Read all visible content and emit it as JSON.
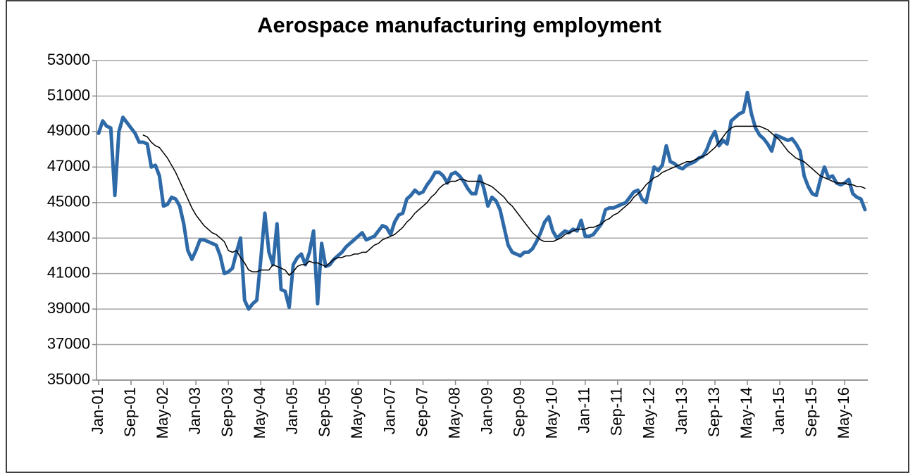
{
  "chart_data": {
    "type": "line",
    "title": "Aerospace manufacturing employment",
    "categories": [
      "Jan-01",
      null,
      null,
      null,
      null,
      null,
      null,
      null,
      "Sep-01",
      null,
      null,
      null,
      null,
      null,
      null,
      null,
      "May-02",
      null,
      null,
      null,
      null,
      null,
      null,
      null,
      "Jan-03",
      null,
      null,
      null,
      null,
      null,
      null,
      null,
      "Sep-03",
      null,
      null,
      null,
      null,
      null,
      null,
      null,
      "May-04",
      null,
      null,
      null,
      null,
      null,
      null,
      null,
      "Jan-05",
      null,
      null,
      null,
      null,
      null,
      null,
      null,
      "Sep-05",
      null,
      null,
      null,
      null,
      null,
      null,
      null,
      "May-06",
      null,
      null,
      null,
      null,
      null,
      null,
      null,
      "Jan-07",
      null,
      null,
      null,
      null,
      null,
      null,
      null,
      "Sep-07",
      null,
      null,
      null,
      null,
      null,
      null,
      null,
      "May-08",
      null,
      null,
      null,
      null,
      null,
      null,
      null,
      "Jan-09",
      null,
      null,
      null,
      null,
      null,
      null,
      null,
      "Sep-09",
      null,
      null,
      null,
      null,
      null,
      null,
      null,
      "May-10",
      null,
      null,
      null,
      null,
      null,
      null,
      null,
      "Jan-11",
      null,
      null,
      null,
      null,
      null,
      null,
      null,
      "Sep-11",
      null,
      null,
      null,
      null,
      null,
      null,
      null,
      "May-12",
      null,
      null,
      null,
      null,
      null,
      null,
      null,
      "Jan-13",
      null,
      null,
      null,
      null,
      null,
      null,
      null,
      "Sep-13",
      null,
      null,
      null,
      null,
      null,
      null,
      null,
      "May-14",
      null,
      null,
      null,
      null,
      null,
      null,
      null,
      "Jan-15",
      null,
      null,
      null,
      null,
      null,
      null,
      null,
      "Sep-15",
      null,
      null,
      null,
      null,
      null,
      null,
      null,
      "May-16",
      null,
      null,
      null,
      null,
      null
    ],
    "series": [
      {
        "color": "#2e6aa8",
        "width": 5,
        "values": [
          48900,
          49600,
          49300,
          49200,
          45400,
          49000,
          49800,
          49500,
          49200,
          48900,
          48400,
          48400,
          48300,
          47000,
          47100,
          46500,
          44800,
          44900,
          45300,
          45200,
          44800,
          43800,
          42300,
          41800,
          42300,
          42900,
          42900,
          42800,
          42700,
          42600,
          42000,
          41000,
          41100,
          41300,
          42200,
          43000,
          39500,
          39000,
          39300,
          39500,
          41800,
          44400,
          42200,
          41500,
          43800,
          40100,
          40000,
          39100,
          41500,
          41900,
          42100,
          41500,
          42200,
          43400,
          39300,
          42700,
          41400,
          41500,
          41800,
          42000,
          42200,
          42500,
          42700,
          42900,
          43100,
          43300,
          42900,
          43000,
          43100,
          43400,
          43700,
          43600,
          43200,
          43900,
          44300,
          44400,
          45200,
          45400,
          45700,
          45500,
          45600,
          46000,
          46300,
          46700,
          46700,
          46500,
          46100,
          46600,
          46700,
          46500,
          46200,
          45800,
          45500,
          45500,
          46500,
          45800,
          44800,
          45300,
          45100,
          44600,
          43600,
          42600,
          42200,
          42100,
          42000,
          42200,
          42200,
          42400,
          42800,
          43300,
          43900,
          44200,
          43400,
          43000,
          43200,
          43400,
          43300,
          43500,
          43400,
          44000,
          43100,
          43100,
          43200,
          43500,
          43800,
          44600,
          44700,
          44700,
          44800,
          44900,
          45000,
          45300,
          45600,
          45700,
          45200,
          45000,
          46000,
          47000,
          46800,
          47100,
          48200,
          47300,
          47200,
          47000,
          46900,
          47100,
          47200,
          47300,
          47500,
          47600,
          48000,
          48600,
          49000,
          48200,
          48500,
          48300,
          49600,
          49800,
          50000,
          50100,
          51200,
          50000,
          49200,
          48800,
          48600,
          48300,
          47900,
          48800,
          48700,
          48600,
          48500,
          48600,
          48300,
          47900,
          46500,
          45900,
          45500,
          45400,
          46300,
          47000,
          46400,
          46500,
          46100,
          46000,
          46100,
          46300,
          45500,
          45300,
          45200,
          44600
        ]
      },
      {
        "color": "#000000",
        "width": 1.5,
        "values": [
          null,
          null,
          null,
          null,
          null,
          null,
          null,
          null,
          null,
          null,
          null,
          48800,
          48700,
          48400,
          48200,
          48100,
          47800,
          47500,
          47100,
          46700,
          46200,
          45700,
          45200,
          44700,
          44300,
          44000,
          43700,
          43500,
          43300,
          43200,
          43000,
          42800,
          42300,
          42200,
          42300,
          41900,
          41600,
          41200,
          41100,
          41100,
          41200,
          41200,
          41200,
          41500,
          41400,
          41300,
          41200,
          40900,
          41100,
          41400,
          41500,
          41500,
          41700,
          41600,
          41600,
          41500,
          41400,
          41600,
          41800,
          41900,
          41900,
          42000,
          42000,
          42100,
          42100,
          42200,
          42200,
          42400,
          42600,
          42700,
          42900,
          43000,
          43100,
          43200,
          43400,
          43600,
          43900,
          44100,
          44400,
          44600,
          44800,
          45000,
          45300,
          45500,
          45800,
          46000,
          46100,
          46200,
          46200,
          46300,
          46300,
          46200,
          46200,
          46200,
          46200,
          46100,
          46000,
          45900,
          45700,
          45500,
          45300,
          45000,
          44800,
          44500,
          44200,
          43900,
          43600,
          43300,
          43100,
          42900,
          42800,
          42800,
          42800,
          42900,
          43000,
          43200,
          43300,
          43400,
          43500,
          43500,
          43500,
          43600,
          43600,
          43700,
          43800,
          44000,
          44100,
          44300,
          44400,
          44600,
          44800,
          45000,
          45300,
          45500,
          45700,
          46000,
          46200,
          46400,
          46500,
          46700,
          46800,
          46900,
          47000,
          47100,
          47200,
          47300,
          47300,
          47400,
          47500,
          47600,
          47700,
          47900,
          48100,
          48400,
          48700,
          49000,
          49200,
          49300,
          49300,
          49300,
          49300,
          49300,
          49300,
          49300,
          49200,
          49100,
          48900,
          48700,
          48500,
          48200,
          47900,
          47700,
          47500,
          47400,
          47300,
          47100,
          46900,
          46700,
          46500,
          46400,
          46300,
          46200,
          46100,
          46100,
          46100,
          46000,
          46000,
          45900,
          45900,
          45800
        ]
      }
    ],
    "ylim": [
      35000,
      53000
    ],
    "yticks": [
      35000,
      37000,
      39000,
      41000,
      43000,
      45000,
      47000,
      49000,
      51000,
      53000
    ],
    "grid": true
  }
}
